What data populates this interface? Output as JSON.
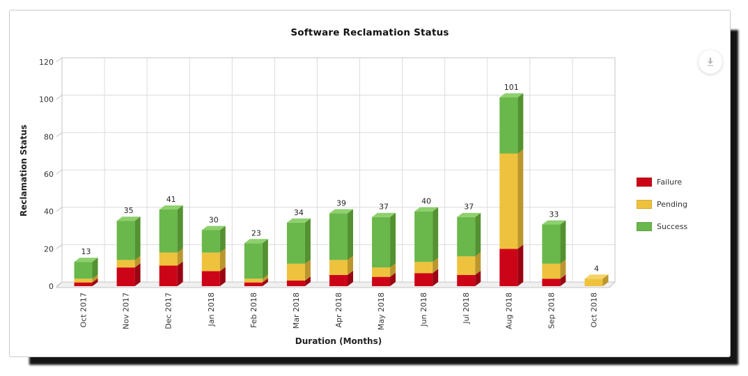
{
  "card": {
    "title": "Software Reclamation Status"
  },
  "chart_data": {
    "type": "bar",
    "stacked": true,
    "style": "3d-column",
    "title": "Software Reclamation Status",
    "xlabel": "Duration (Months)",
    "ylabel": "Reclamation Status",
    "ylim": [
      0,
      120
    ],
    "yticks": [
      0,
      20,
      40,
      60,
      80,
      100,
      120
    ],
    "grid": true,
    "legend_position": "right",
    "categories": [
      "Oct 2017",
      "Nov 2017",
      "Dec 2017",
      "Jan 2018",
      "Feb 2018",
      "Mar 2018",
      "Apr 2018",
      "May 2018",
      "Jun 2018",
      "Jul 2018",
      "Aug 2018",
      "Sep 2018",
      "Oct 2018"
    ],
    "totals": [
      13,
      35,
      41,
      30,
      23,
      34,
      39,
      37,
      40,
      37,
      101,
      33,
      4
    ],
    "series": [
      {
        "name": "Failure",
        "color": "#cc0418",
        "side_color": "#9a0413",
        "top_color": "#e04a57",
        "values": [
          2,
          10,
          11,
          8,
          2,
          3,
          6,
          5,
          7,
          6,
          20,
          4,
          0
        ]
      },
      {
        "name": "Pending",
        "color": "#eec23c",
        "side_color": "#bb962c",
        "top_color": "#f4d468",
        "values": [
          2,
          4,
          7,
          10,
          2,
          9,
          8,
          5,
          6,
          10,
          51,
          8,
          4
        ]
      },
      {
        "name": "Success",
        "color": "#6ab74b",
        "side_color": "#549231",
        "top_color": "#8ed06d",
        "values": [
          9,
          21,
          23,
          12,
          19,
          22,
          25,
          27,
          27,
          21,
          30,
          21,
          0
        ]
      }
    ]
  }
}
